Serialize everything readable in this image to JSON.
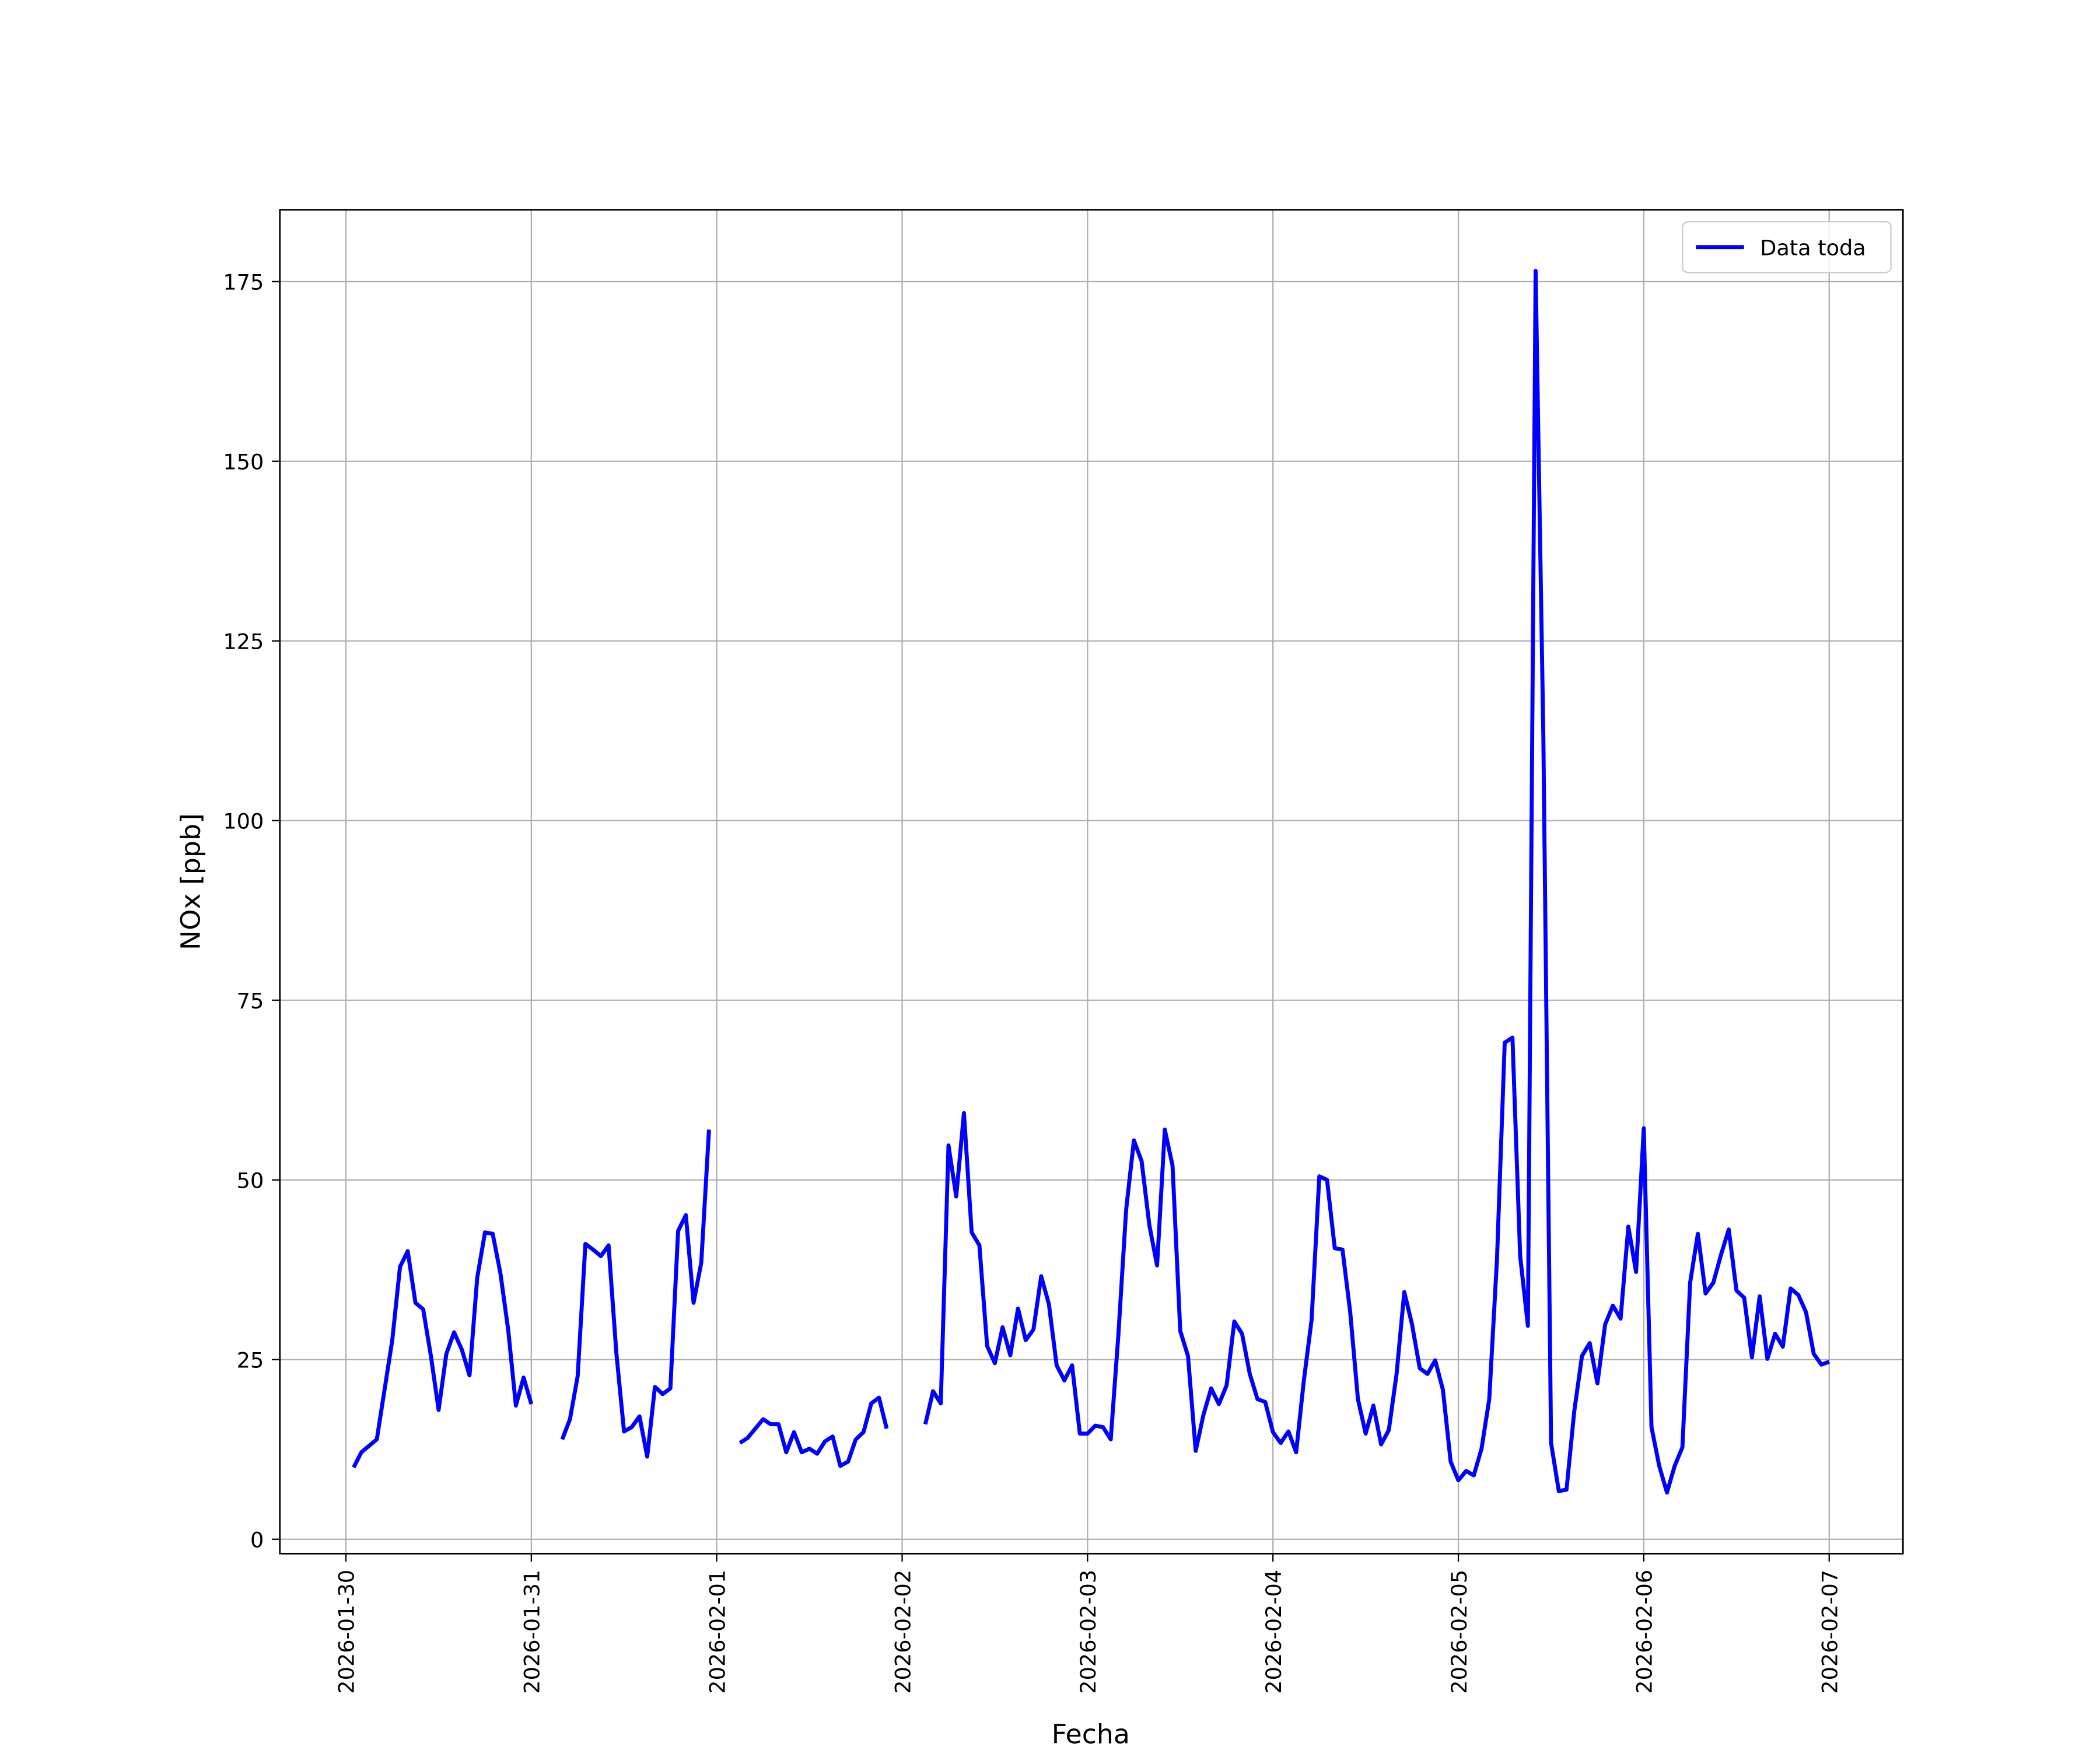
{
  "chart_data": {
    "type": "line",
    "xlabel": "Fecha",
    "ylabel": "NOx [ppb]",
    "x": [
      "2026-01-30 01:00",
      "2026-01-30 02:00",
      "2026-01-30 03:00",
      "2026-01-30 04:00",
      "2026-01-30 05:00",
      "2026-01-30 06:00",
      "2026-01-30 07:00",
      "2026-01-30 08:00",
      "2026-01-30 09:00",
      "2026-01-30 10:00",
      "2026-01-30 11:00",
      "2026-01-30 12:00",
      "2026-01-30 13:00",
      "2026-01-30 14:00",
      "2026-01-30 15:00",
      "2026-01-30 16:00",
      "2026-01-30 17:00",
      "2026-01-30 18:00",
      "2026-01-30 19:00",
      "2026-01-30 20:00",
      "2026-01-30 21:00",
      "2026-01-30 22:00",
      "2026-01-30 23:00",
      "2026-01-31 00:00",
      "2026-01-31 01:00",
      "2026-01-31 02:00",
      "2026-01-31 03:00",
      "2026-01-31 04:00",
      "2026-01-31 05:00",
      "2026-01-31 06:00",
      "2026-01-31 07:00",
      "2026-01-31 08:00",
      "2026-01-31 09:00",
      "2026-01-31 10:00",
      "2026-01-31 11:00",
      "2026-01-31 12:00",
      "2026-01-31 13:00",
      "2026-01-31 14:00",
      "2026-01-31 15:00",
      "2026-01-31 16:00",
      "2026-01-31 17:00",
      "2026-01-31 18:00",
      "2026-01-31 19:00",
      "2026-01-31 20:00",
      "2026-01-31 21:00",
      "2026-01-31 22:00",
      "2026-01-31 23:00",
      "2026-02-01 00:00",
      "2026-02-01 01:00",
      "2026-02-01 02:00",
      "2026-02-01 03:00",
      "2026-02-01 04:00",
      "2026-02-01 05:00",
      "2026-02-01 06:00",
      "2026-02-01 07:00",
      "2026-02-01 08:00",
      "2026-02-01 09:00",
      "2026-02-01 10:00",
      "2026-02-01 11:00",
      "2026-02-01 12:00",
      "2026-02-01 13:00",
      "2026-02-01 14:00",
      "2026-02-01 15:00",
      "2026-02-01 16:00",
      "2026-02-01 17:00",
      "2026-02-01 18:00",
      "2026-02-01 19:00",
      "2026-02-01 20:00",
      "2026-02-01 21:00",
      "2026-02-01 22:00",
      "2026-02-01 23:00",
      "2026-02-02 00:00",
      "2026-02-02 01:00",
      "2026-02-02 02:00",
      "2026-02-02 03:00",
      "2026-02-02 04:00",
      "2026-02-02 05:00",
      "2026-02-02 06:00",
      "2026-02-02 07:00",
      "2026-02-02 08:00",
      "2026-02-02 09:00",
      "2026-02-02 10:00",
      "2026-02-02 11:00",
      "2026-02-02 12:00",
      "2026-02-02 13:00",
      "2026-02-02 14:00",
      "2026-02-02 15:00",
      "2026-02-02 16:00",
      "2026-02-02 17:00",
      "2026-02-02 18:00",
      "2026-02-02 19:00",
      "2026-02-02 20:00",
      "2026-02-02 21:00",
      "2026-02-02 22:00",
      "2026-02-02 23:00",
      "2026-02-03 00:00",
      "2026-02-03 01:00",
      "2026-02-03 02:00",
      "2026-02-03 03:00",
      "2026-02-03 04:00",
      "2026-02-03 05:00",
      "2026-02-03 06:00",
      "2026-02-03 07:00",
      "2026-02-03 08:00",
      "2026-02-03 09:00",
      "2026-02-03 10:00",
      "2026-02-03 11:00",
      "2026-02-03 12:00",
      "2026-02-03 13:00",
      "2026-02-03 14:00",
      "2026-02-03 15:00",
      "2026-02-03 16:00",
      "2026-02-03 17:00",
      "2026-02-03 18:00",
      "2026-02-03 19:00",
      "2026-02-03 20:00",
      "2026-02-03 21:00",
      "2026-02-03 22:00",
      "2026-02-03 23:00",
      "2026-02-04 00:00",
      "2026-02-04 01:00",
      "2026-02-04 02:00",
      "2026-02-04 03:00",
      "2026-02-04 04:00",
      "2026-02-04 05:00",
      "2026-02-04 06:00",
      "2026-02-04 07:00",
      "2026-02-04 08:00",
      "2026-02-04 09:00",
      "2026-02-04 10:00",
      "2026-02-04 11:00",
      "2026-02-04 12:00",
      "2026-02-04 13:00",
      "2026-02-04 14:00",
      "2026-02-04 15:00",
      "2026-02-04 16:00",
      "2026-02-04 17:00",
      "2026-02-04 18:00",
      "2026-02-04 19:00",
      "2026-02-04 20:00",
      "2026-02-04 21:00",
      "2026-02-04 22:00",
      "2026-02-04 23:00",
      "2026-02-05 00:00",
      "2026-02-05 01:00",
      "2026-02-05 02:00",
      "2026-02-05 03:00",
      "2026-02-05 04:00",
      "2026-02-05 05:00",
      "2026-02-05 06:00",
      "2026-02-05 07:00",
      "2026-02-05 08:00",
      "2026-02-05 09:00",
      "2026-02-05 10:00",
      "2026-02-05 11:00",
      "2026-02-05 12:00",
      "2026-02-05 13:00",
      "2026-02-05 14:00",
      "2026-02-05 15:00",
      "2026-02-05 16:00",
      "2026-02-05 17:00",
      "2026-02-05 18:00",
      "2026-02-05 19:00",
      "2026-02-05 20:00",
      "2026-02-05 21:00",
      "2026-02-05 22:00",
      "2026-02-05 23:00",
      "2026-02-06 00:00",
      "2026-02-06 01:00",
      "2026-02-06 02:00",
      "2026-02-06 03:00",
      "2026-02-06 04:00",
      "2026-02-06 05:00",
      "2026-02-06 06:00",
      "2026-02-06 07:00",
      "2026-02-06 08:00",
      "2026-02-06 09:00",
      "2026-02-06 10:00",
      "2026-02-06 11:00",
      "2026-02-06 12:00",
      "2026-02-06 13:00",
      "2026-02-06 14:00",
      "2026-02-06 15:00",
      "2026-02-06 16:00",
      "2026-02-06 17:00",
      "2026-02-06 18:00",
      "2026-02-06 19:00",
      "2026-02-06 20:00",
      "2026-02-06 21:00",
      "2026-02-06 22:00",
      "2026-02-06 23:00",
      "2026-02-07 00:00"
    ],
    "series": [
      {
        "name": "Data toda",
        "color": "#0000ff",
        "values": [
          10.0,
          12.1,
          13.0,
          13.9,
          20.8,
          27.7,
          37.9,
          40.1,
          32.9,
          32.0,
          25.5,
          18.0,
          25.8,
          28.8,
          26.4,
          22.8,
          36.4,
          42.7,
          42.5,
          37.0,
          29.2,
          18.6,
          22.5,
          18.8,
          null,
          null,
          null,
          13.9,
          16.7,
          22.7,
          41.1,
          40.3,
          39.4,
          40.9,
          26.0,
          15.0,
          15.6,
          17.1,
          11.5,
          21.2,
          20.2,
          21.0,
          42.9,
          45.1,
          32.9,
          38.5,
          57.0,
          null,
          null,
          null,
          13.4,
          14.1,
          15.4,
          16.7,
          16.0,
          16.0,
          12.1,
          14.9,
          12.1,
          12.6,
          11.9,
          13.6,
          14.3,
          10.2,
          10.8,
          13.9,
          14.9,
          18.9,
          19.7,
          15.4,
          null,
          null,
          null,
          null,
          16.0,
          20.6,
          18.9,
          54.8,
          47.7,
          59.3,
          42.7,
          40.9,
          26.9,
          24.5,
          29.5,
          25.6,
          32.1,
          27.7,
          29.2,
          36.6,
          32.7,
          24.2,
          22.1,
          24.2,
          14.7,
          14.7,
          15.8,
          15.6,
          13.9,
          28.6,
          45.9,
          55.5,
          52.6,
          43.7,
          38.1,
          57.0,
          52.0,
          29.0,
          25.5,
          12.3,
          17.3,
          21.0,
          18.8,
          21.4,
          30.3,
          28.6,
          23.0,
          19.5,
          19.1,
          14.9,
          13.4,
          15.0,
          12.1,
          22.1,
          30.5,
          50.5,
          50.0,
          40.5,
          40.3,
          31.6,
          19.5,
          14.7,
          18.6,
          13.2,
          15.2,
          23.0,
          34.4,
          29.9,
          23.8,
          23.0,
          24.9,
          20.8,
          10.8,
          8.2,
          9.5,
          8.9,
          12.6,
          19.5,
          39.0,
          69.1,
          69.8,
          39.4,
          29.7,
          176.5,
          111.8,
          13.4,
          6.7,
          6.9,
          17.8,
          25.5,
          27.3,
          21.7,
          29.9,
          32.5,
          30.7,
          43.5,
          37.2,
          57.2,
          15.6,
          10.2,
          6.5,
          10.2,
          12.8,
          35.7,
          42.5,
          34.2,
          35.7,
          39.6,
          43.1,
          34.6,
          33.6,
          25.3,
          33.8,
          25.1,
          28.6,
          26.8,
          34.9,
          34.0,
          31.6,
          25.8,
          24.3,
          24.7
        ]
      }
    ],
    "xlim": [
      "2026-01-29 15:27",
      "2026-02-07 09:33"
    ],
    "xticks": [
      "2026-01-30",
      "2026-01-31",
      "2026-02-01",
      "2026-02-02",
      "2026-02-03",
      "2026-02-04",
      "2026-02-05",
      "2026-02-06",
      "2026-02-07"
    ],
    "ylim": [
      -2,
      185
    ],
    "yticks": [
      0,
      25,
      50,
      75,
      100,
      125,
      150,
      175
    ],
    "grid": true,
    "legend": "upper right"
  }
}
